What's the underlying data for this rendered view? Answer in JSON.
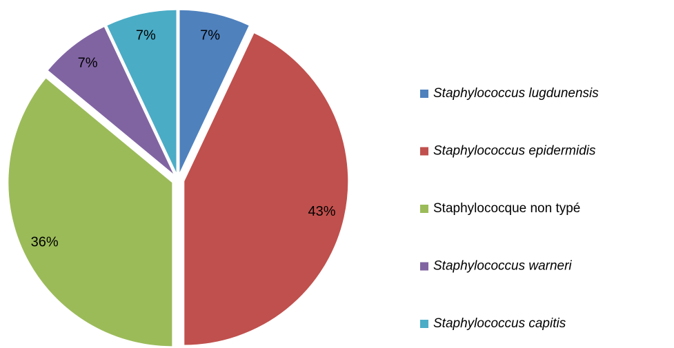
{
  "chart_data": {
    "type": "pie",
    "categories": [
      "Staphylococcus lugdunensis",
      "Staphylococcus epidermidis",
      "Staphylococque non typé",
      "Staphylococcus warneri",
      "Staphylococcus capitis"
    ],
    "values": [
      7,
      43,
      36,
      7,
      7
    ],
    "value_labels": [
      "7%",
      "43%",
      "36%",
      "7%",
      "7%"
    ],
    "colors": [
      "#4f81bd",
      "#c0504d",
      "#9bbb59",
      "#8064a2",
      "#4bacc6"
    ],
    "italic": [
      true,
      true,
      false,
      true,
      true
    ],
    "legend": "right"
  }
}
